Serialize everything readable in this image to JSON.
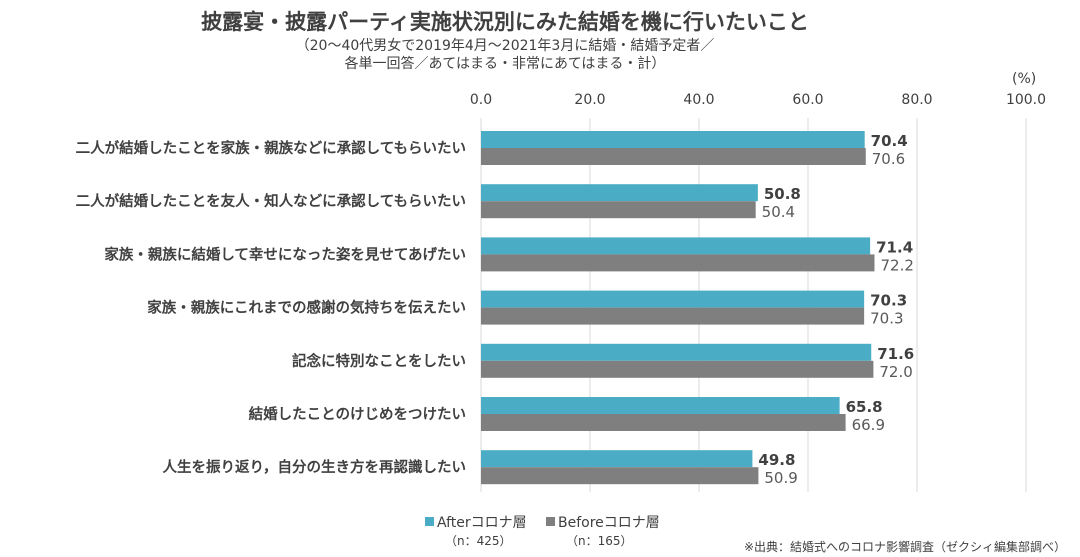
{
  "title": "披露宴・披露パーティ実施状況別にみた結婚を機に行いたいこと",
  "subtitle_line1": "（20～40代男女で2019年4月～2021年3月に結婚・結婚予定者／",
  "subtitle_line2": "各単一回答／あてはまる・非常にあてはまる・計）",
  "unit_label": "(%)",
  "source": "※出典：結婚式へのコロナ影響調査（ゼクシィ編集部調べ）",
  "legend": {
    "after_label": "Afterコロナ層",
    "after_n": "（n：425）",
    "before_label": "Beforeコロナ層",
    "before_n": "（n：165）"
  },
  "colors": {
    "after": "#4BACC6",
    "before": "#7F7F7F",
    "grid": "#D9D9D9",
    "text": "#404040"
  },
  "chart_data": {
    "type": "bar",
    "orientation": "horizontal",
    "categories": [
      "二人が結婚したことを家族・親族などに承認してもらいたい",
      "二人が結婚したことを友人・知人などに承認してもらいたい",
      "家族・親族に結婚して幸せになった姿を見せてあげたい",
      "家族・親族にこれまでの感謝の気持ちを伝えたい",
      "記念に特別なことをしたい",
      "結婚したことのけじめをつけたい",
      "人生を振り返り，自分の生き方を再認識したい"
    ],
    "series": [
      {
        "name": "Afterコロナ層",
        "values": [
          70.4,
          50.8,
          71.4,
          70.3,
          71.6,
          65.8,
          49.8
        ]
      },
      {
        "name": "Beforeコロナ層",
        "values": [
          70.6,
          50.4,
          72.2,
          70.3,
          72.0,
          66.9,
          50.9
        ]
      }
    ],
    "xlim": [
      0,
      100
    ],
    "xticks": [
      "0.0",
      "20.0",
      "40.0",
      "60.0",
      "80.0",
      "100.0"
    ],
    "xaxis_position": "top",
    "grid": true,
    "legend_position": "bottom"
  }
}
